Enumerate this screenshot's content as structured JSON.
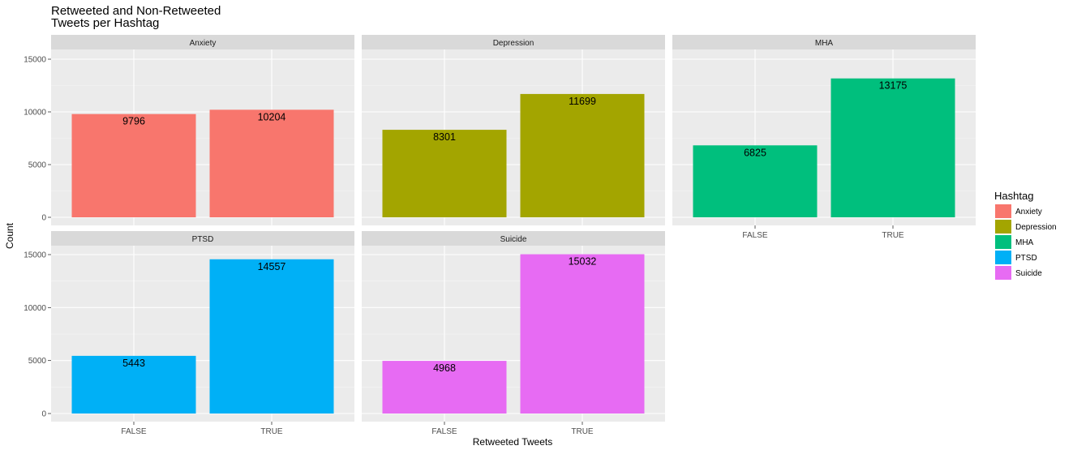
{
  "chart_data": {
    "type": "bar",
    "title_lines": [
      "Retweeted and Non-Retweeted",
      "Tweets per Hashtag"
    ],
    "xlabel": "Retweeted Tweets",
    "ylabel": "Count",
    "ylim": [
      0,
      16000
    ],
    "yticks": [
      0,
      5000,
      10000,
      15000
    ],
    "categories": [
      "FALSE",
      "TRUE"
    ],
    "facets": [
      {
        "name": "Anxiety",
        "color": "#F8766D",
        "values": [
          9796,
          10204
        ]
      },
      {
        "name": "Depression",
        "color": "#A3A500",
        "values": [
          8301,
          11699
        ]
      },
      {
        "name": "MHA",
        "color": "#00BF7D",
        "values": [
          6825,
          13175
        ]
      },
      {
        "name": "PTSD",
        "color": "#00B0F6",
        "values": [
          5443,
          14557
        ]
      },
      {
        "name": "Suicide",
        "color": "#E76BF3",
        "values": [
          4968,
          15032
        ]
      }
    ],
    "legend": {
      "title": "Hashtag",
      "position": "right",
      "entries": [
        "Anxiety",
        "Depression",
        "MHA",
        "PTSD",
        "Suicide"
      ]
    },
    "grid": true
  }
}
